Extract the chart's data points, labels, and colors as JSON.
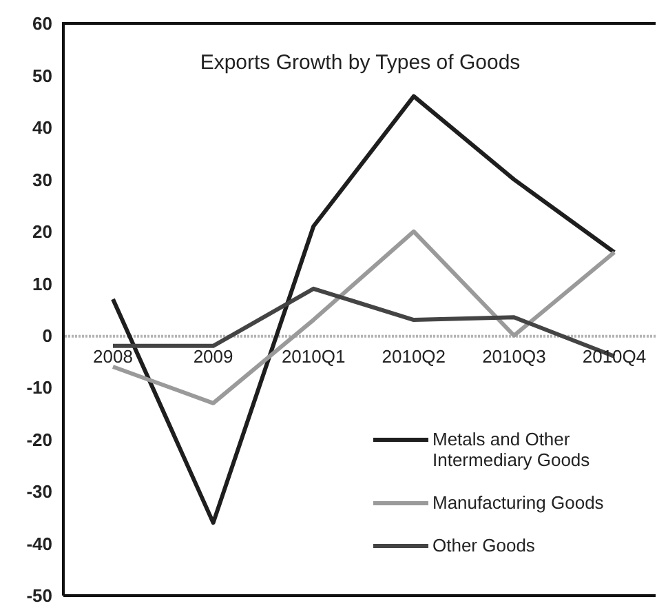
{
  "chart_data": {
    "type": "line",
    "title": "Exports Growth by Types of Goods",
    "categories": [
      "2008",
      "2009",
      "2010Q1",
      "2010Q2",
      "2010Q3",
      "2010Q4"
    ],
    "series": [
      {
        "name": "Metals and Other Intermediary Goods",
        "color": "#1e1e1e",
        "values": [
          7,
          -36,
          21,
          46,
          30,
          16
        ]
      },
      {
        "name": "Manufacturing Goods",
        "color": "#9a9a9a",
        "values": [
          -6,
          -13,
          3,
          20,
          0,
          16
        ]
      },
      {
        "name": "Other Goods",
        "color": "#444444",
        "values": [
          -2,
          -2,
          9,
          3,
          3.5,
          -4
        ]
      }
    ],
    "ylim": [
      -50,
      60
    ],
    "yticks": [
      -50,
      -40,
      -30,
      -20,
      -10,
      0,
      10,
      20,
      30,
      40,
      50,
      60
    ],
    "ref_lines": [
      {
        "axis": "y",
        "value": 0,
        "color": "#b4b4b4",
        "line_style": "dotted"
      }
    ],
    "grid": false,
    "legend": "bottom right",
    "marker": "none",
    "line_style": "solid"
  }
}
